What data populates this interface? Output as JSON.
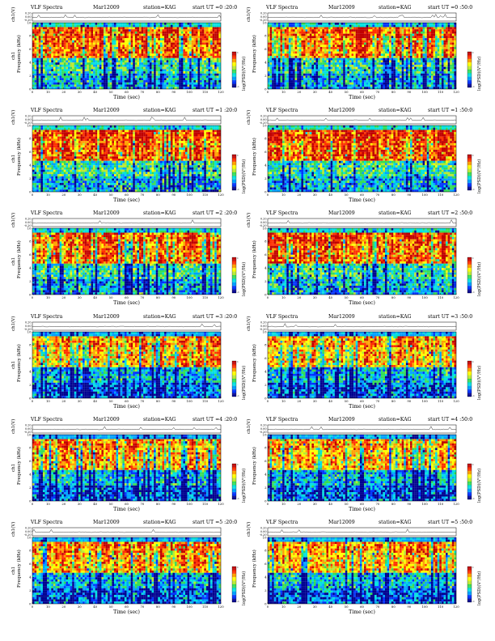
{
  "chart_data": [
    {
      "type": "heatmap",
      "title": "VLF Spectra",
      "month": "Mar12009",
      "station": "station=KAG",
      "start": "start  UT =0 :20:0",
      "top_ylabel": "ch1(V)",
      "top_yticks": [
        "0.20",
        "0.00",
        "-0.20"
      ],
      "channel": "ch1",
      "ylabel": "Frequency  (kHz)",
      "xlabel": "Time  (sec)",
      "xlim": [
        0,
        120
      ],
      "xticks": [
        "0",
        "10",
        "20",
        "30",
        "40",
        "50",
        "60",
        "70",
        "80",
        "90",
        "100",
        "110",
        "120"
      ],
      "ylim": [
        0,
        10
      ],
      "yticks": [
        "0",
        "2",
        "4",
        "6",
        "8",
        "10"
      ],
      "colorbar_label": "log(PSD)(V²/Hz)",
      "colorbar_range": [
        -1,
        1
      ]
    },
    {
      "type": "heatmap",
      "title": "VLF Spectra",
      "month": "Mar12009",
      "station": "station=KAG",
      "start": "start  UT =0 :50:0",
      "top_ylabel": "ch1(V)",
      "top_yticks": [
        "0.20",
        "0.00",
        "-0.20"
      ],
      "channel": "",
      "ylabel": "Frequency  (kHz)",
      "xlabel": "Time  (sec)",
      "xlim": [
        0,
        120
      ],
      "xticks": [
        "0",
        "10",
        "20",
        "30",
        "40",
        "50",
        "60",
        "70",
        "80",
        "90",
        "100",
        "110",
        "120"
      ],
      "ylim": [
        0,
        10
      ],
      "yticks": [
        "0",
        "2",
        "4",
        "6",
        "8",
        "10"
      ],
      "colorbar_label": "log(PSD)(V²/Hz)",
      "colorbar_range": [
        -1,
        1
      ]
    },
    {
      "type": "heatmap",
      "title": "VLF Spectra",
      "month": "Mar12009",
      "station": "station=KAG",
      "start": "start  UT =1 :20:0",
      "top_ylabel": "ch1(V)",
      "top_yticks": [
        "0.20",
        "0.00",
        "-0.20"
      ],
      "channel": "ch1",
      "ylabel": "Frequency  (kHz)",
      "xlabel": "Time  (sec)",
      "xlim": [
        0,
        120
      ],
      "xticks": [
        "0",
        "10",
        "20",
        "30",
        "40",
        "50",
        "60",
        "70",
        "80",
        "90",
        "100",
        "110",
        "120"
      ],
      "ylim": [
        0,
        10
      ],
      "yticks": [
        "0",
        "2",
        "4",
        "6",
        "8",
        "10"
      ],
      "colorbar_label": "log(PSD)(V²/Hz)",
      "colorbar_range": [
        -1,
        1
      ]
    },
    {
      "type": "heatmap",
      "title": "VLF Spectra",
      "month": "Mar12009",
      "station": "station=KAG",
      "start": "start  UT =1 :50:0",
      "top_ylabel": "ch1(V)",
      "top_yticks": [
        "0.20",
        "0.00",
        "-0.20"
      ],
      "channel": "",
      "ylabel": "Frequency  (kHz)",
      "xlabel": "Time  (sec)",
      "xlim": [
        0,
        120
      ],
      "xticks": [
        "0",
        "10",
        "20",
        "30",
        "40",
        "50",
        "60",
        "70",
        "80",
        "90",
        "100",
        "110",
        "120"
      ],
      "ylim": [
        0,
        10
      ],
      "yticks": [
        "0",
        "2",
        "4",
        "6",
        "8",
        "10"
      ],
      "colorbar_label": "log(PSD)(V²/Hz)",
      "colorbar_range": [
        -1,
        1
      ]
    },
    {
      "type": "heatmap",
      "title": "VLF Spectra",
      "month": "Mar12009",
      "station": "station=KAG",
      "start": "start  UT =2 :20:0",
      "top_ylabel": "ch1(V)",
      "top_yticks": [
        "0.20",
        "0.00",
        "-0.20"
      ],
      "channel": "ch1",
      "ylabel": "Frequency  (kHz)",
      "xlabel": "Time  (sec)",
      "xlim": [
        0,
        120
      ],
      "xticks": [
        "0",
        "10",
        "20",
        "30",
        "40",
        "50",
        "60",
        "70",
        "80",
        "90",
        "100",
        "110",
        "120"
      ],
      "ylim": [
        0,
        10
      ],
      "yticks": [
        "0",
        "2",
        "4",
        "6",
        "8",
        "10"
      ],
      "colorbar_label": "log(PSD)(V²/Hz)",
      "colorbar_range": [
        -1,
        1
      ]
    },
    {
      "type": "heatmap",
      "title": "VLF Spectra",
      "month": "Mar12009",
      "station": "station=KAG",
      "start": "start  UT =2 :50:0",
      "top_ylabel": "ch1(V)",
      "top_yticks": [
        "0.20",
        "0.00",
        "-0.20"
      ],
      "channel": "",
      "ylabel": "Frequency  (kHz)",
      "xlabel": "Time  (sec)",
      "xlim": [
        0,
        120
      ],
      "xticks": [
        "0",
        "10",
        "20",
        "30",
        "40",
        "50",
        "60",
        "70",
        "80",
        "90",
        "100",
        "110",
        "120"
      ],
      "ylim": [
        0,
        10
      ],
      "yticks": [
        "0",
        "2",
        "4",
        "6",
        "8",
        "10"
      ],
      "colorbar_label": "log(PSD)(V²/Hz)",
      "colorbar_range": [
        -1,
        1
      ]
    },
    {
      "type": "heatmap",
      "title": "VLF Spectra",
      "month": "Mar12009",
      "station": "station=KAG",
      "start": "start  UT =3 :20:0",
      "top_ylabel": "ch1(V)",
      "top_yticks": [
        "0.20",
        "0.00",
        "-0.20"
      ],
      "channel": "ch1",
      "ylabel": "Frequency  (kHz)",
      "xlabel": "Time  (sec)",
      "xlim": [
        0,
        120
      ],
      "xticks": [
        "0",
        "10",
        "20",
        "30",
        "40",
        "50",
        "60",
        "70",
        "80",
        "90",
        "100",
        "110",
        "120"
      ],
      "ylim": [
        0,
        10
      ],
      "yticks": [
        "0",
        "2",
        "4",
        "6",
        "8",
        "10"
      ],
      "colorbar_label": "log(PSD)(V²/Hz)",
      "colorbar_range": [
        -1,
        1
      ]
    },
    {
      "type": "heatmap",
      "title": "VLF Spectra",
      "month": "Mar12009",
      "station": "station=KAG",
      "start": "start  UT =3 :50:0",
      "top_ylabel": "ch1(V)",
      "top_yticks": [
        "0.20",
        "0.00",
        "-0.20"
      ],
      "channel": "",
      "ylabel": "Frequency  (kHz)",
      "xlabel": "Time  (sec)",
      "xlim": [
        0,
        120
      ],
      "xticks": [
        "0",
        "10",
        "20",
        "30",
        "40",
        "50",
        "60",
        "70",
        "80",
        "90",
        "100",
        "110",
        "120"
      ],
      "ylim": [
        0,
        10
      ],
      "yticks": [
        "0",
        "2",
        "4",
        "6",
        "8",
        "10"
      ],
      "colorbar_label": "log(PSD)(V²/Hz)",
      "colorbar_range": [
        -1,
        1
      ]
    },
    {
      "type": "heatmap",
      "title": "VLF Spectra",
      "month": "Mar12009",
      "station": "station=KAG",
      "start": "start  UT =4 :20:0",
      "top_ylabel": "ch1(V)",
      "top_yticks": [
        "0.20",
        "0.00",
        "-0.20"
      ],
      "channel": "ch1",
      "ylabel": "Frequency  (kHz)",
      "xlabel": "Time  (sec)",
      "xlim": [
        0,
        120
      ],
      "xticks": [
        "0",
        "10",
        "20",
        "30",
        "40",
        "50",
        "60",
        "70",
        "80",
        "90",
        "100",
        "110",
        "120"
      ],
      "ylim": [
        0,
        10
      ],
      "yticks": [
        "0",
        "2",
        "4",
        "6",
        "8",
        "10"
      ],
      "colorbar_label": "log(PSD)(V²/Hz)",
      "colorbar_range": [
        -1,
        1
      ]
    },
    {
      "type": "heatmap",
      "title": "VLF Spectra",
      "month": "Mar12009",
      "station": "station=KAG",
      "start": "start  UT =4 :50:0",
      "top_ylabel": "ch1(V)",
      "top_yticks": [
        "0.20",
        "0.00",
        "-0.20"
      ],
      "channel": "",
      "ylabel": "Frequency  (kHz)",
      "xlabel": "Time  (sec)",
      "xlim": [
        0,
        120
      ],
      "xticks": [
        "0",
        "10",
        "20",
        "30",
        "40",
        "50",
        "60",
        "70",
        "80",
        "90",
        "100",
        "110",
        "120"
      ],
      "ylim": [
        0,
        10
      ],
      "yticks": [
        "0",
        "2",
        "4",
        "6",
        "8",
        "10"
      ],
      "colorbar_label": "log(PSD)(V²/Hz)",
      "colorbar_range": [
        -1,
        1
      ]
    },
    {
      "type": "heatmap",
      "title": "VLF Spectra",
      "month": "Mar12009",
      "station": "station=KAG",
      "start": "start  UT =5 :20:0",
      "top_ylabel": "ch1(V)",
      "top_yticks": [
        "0.20",
        "0.00",
        "-0.20"
      ],
      "channel": "ch1",
      "ylabel": "Frequency  (kHz)",
      "xlabel": "Time  (sec)",
      "xlim": [
        0,
        120
      ],
      "xticks": [
        "0",
        "10",
        "20",
        "30",
        "40",
        "50",
        "60",
        "70",
        "80",
        "90",
        "100",
        "110",
        "120"
      ],
      "ylim": [
        0,
        10
      ],
      "yticks": [
        "0",
        "2",
        "4",
        "6",
        "8",
        "10"
      ],
      "colorbar_label": "log(PSD)(V²/Hz)",
      "colorbar_range": [
        -1,
        1
      ]
    },
    {
      "type": "heatmap",
      "title": "VLF Spectra",
      "month": "Mar12009",
      "station": "station=KAG",
      "start": "start  UT =5 :50:0",
      "top_ylabel": "ch1(V)",
      "top_yticks": [
        "0.20",
        "0.00",
        "-0.20"
      ],
      "channel": "",
      "ylabel": "Frequency  (kHz)",
      "xlabel": "Time  (sec)",
      "xlim": [
        0,
        120
      ],
      "xticks": [
        "0",
        "10",
        "20",
        "30",
        "40",
        "50",
        "60",
        "70",
        "80",
        "90",
        "100",
        "110",
        "120"
      ],
      "ylim": [
        0,
        10
      ],
      "yticks": [
        "0",
        "2",
        "4",
        "6",
        "8",
        "10"
      ],
      "colorbar_label": "log(PSD)(V²/Hz)",
      "colorbar_range": [
        -1,
        1
      ]
    }
  ],
  "colors": {
    "colormap": [
      "#00008f",
      "#0033ff",
      "#00a0ff",
      "#00e0e0",
      "#33dd55",
      "#b8e830",
      "#ffff00",
      "#ffa000",
      "#ff3000",
      "#c00000"
    ],
    "background": "#ffffff",
    "text": "#000000"
  }
}
